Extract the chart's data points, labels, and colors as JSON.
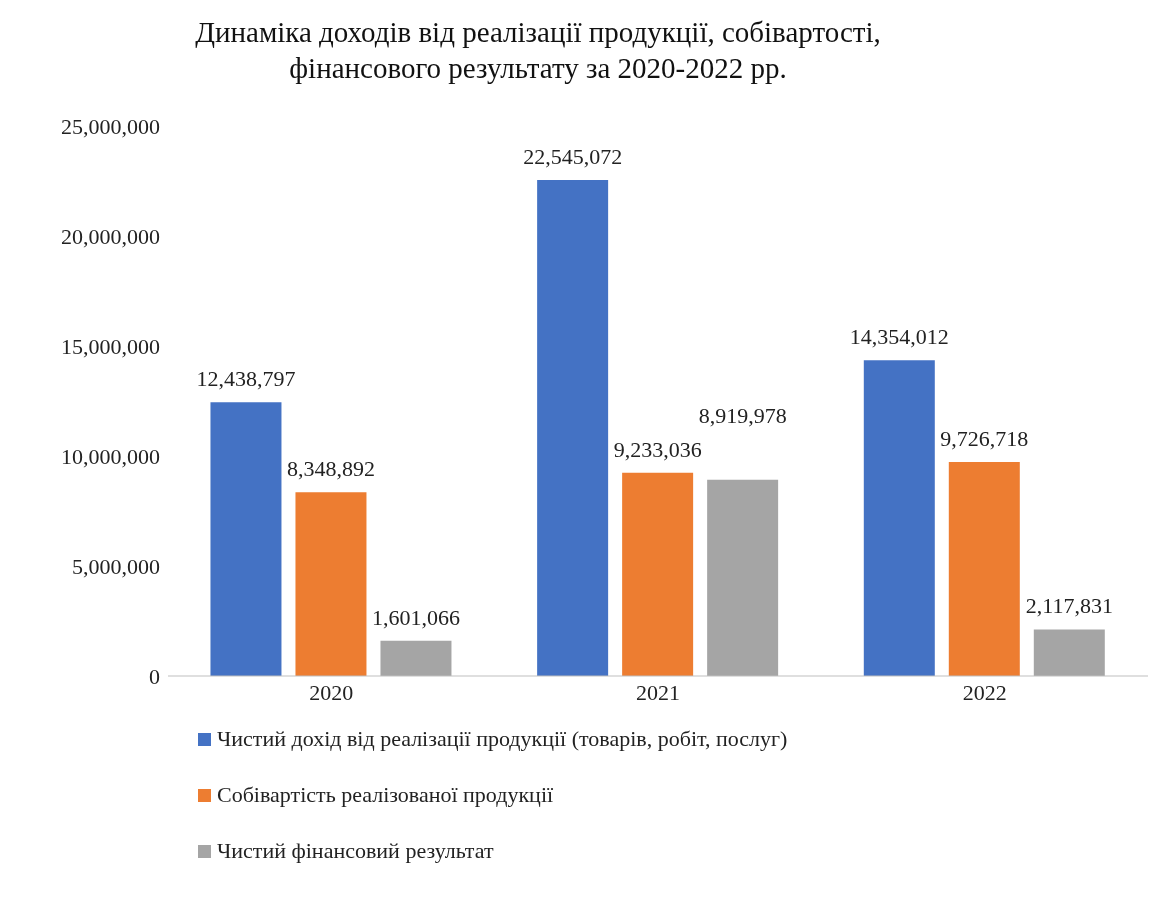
{
  "chart_data": {
    "type": "bar",
    "title": "Динаміка доходів від реалізації продукції, собівартості, фінансового результату за 2020-2022 рр.",
    "categories": [
      "2020",
      "2021",
      "2022"
    ],
    "series": [
      {
        "name": "Чистий дохід від реалізації продукції (товарів, робіт, послуг)",
        "color": "#4472c4",
        "values": [
          12438797,
          22545072,
          14354012
        ],
        "value_labels": [
          "12,438,797",
          "22,545,072",
          "14,354,012"
        ]
      },
      {
        "name": "Собівартість реалізованої продукції",
        "color": "#ed7d31",
        "values": [
          8348892,
          9233036,
          9726718
        ],
        "value_labels": [
          "8,348,892",
          "9,233,036",
          "9,726,718"
        ]
      },
      {
        "name": "Чистий фінансовий результат",
        "color": "#a5a5a5",
        "values": [
          1601066,
          8919978,
          2117831
        ],
        "value_labels": [
          "1,601,066",
          "8,919,978",
          "2,117,831"
        ]
      }
    ],
    "ylim": [
      0,
      25000000
    ],
    "yticks": [
      {
        "value": 0,
        "label": "0"
      },
      {
        "value": 5000000,
        "label": "5,000,000"
      },
      {
        "value": 10000000,
        "label": "10,000,000"
      },
      {
        "value": 15000000,
        "label": "15,000,000"
      },
      {
        "value": 20000000,
        "label": "20,000,000"
      },
      {
        "value": 25000000,
        "label": "25,000,000"
      }
    ],
    "legend": "bottom"
  }
}
